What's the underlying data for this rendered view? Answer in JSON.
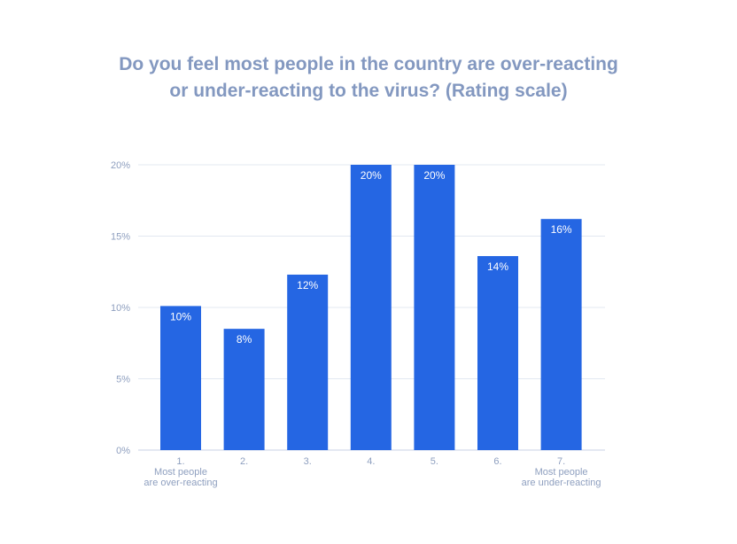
{
  "chart_data": {
    "type": "bar",
    "title_line1": "Do you feel most people in the country are over-reacting",
    "title_line2": "or under-reacting to the virus? (Rating scale)",
    "categories": [
      [
        "1.",
        "Most people",
        "are over-reacting"
      ],
      [
        "2."
      ],
      [
        "3."
      ],
      [
        "4."
      ],
      [
        "5."
      ],
      [
        "6."
      ],
      [
        "7.",
        "Most people",
        "are under-reacting"
      ]
    ],
    "values": [
      10.1,
      8.5,
      12.3,
      20.0,
      20.0,
      13.6,
      16.2
    ],
    "labels": [
      "10%",
      "8%",
      "12%",
      "20%",
      "20%",
      "14%",
      "16%"
    ],
    "yticks": [
      0,
      5,
      10,
      15,
      20
    ],
    "ytick_labels": [
      "0%",
      "5%",
      "10%",
      "15%",
      "20%"
    ],
    "ylim": [
      0,
      20
    ],
    "bar_color": "#2566e3",
    "grid": true
  }
}
